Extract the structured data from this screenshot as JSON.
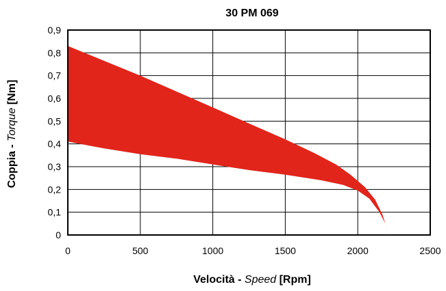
{
  "chart_data": {
    "type": "area",
    "title": "30 PM 069",
    "xlabel": {
      "main": "Velocità - ",
      "italic": "Speed",
      "unit": " [Rpm]"
    },
    "ylabel": {
      "main": "Coppia - ",
      "italic": "Torque",
      "unit": " [Nm]"
    },
    "xlim": [
      0,
      2500
    ],
    "ylim": [
      0,
      0.9
    ],
    "x_ticks": [
      0,
      500,
      1000,
      1500,
      2000,
      2500
    ],
    "x_tick_labels": [
      "0",
      "500",
      "1000",
      "1500",
      "2000",
      "2500"
    ],
    "y_ticks": [
      0,
      0.1,
      0.2,
      0.3,
      0.4,
      0.5,
      0.6,
      0.7,
      0.8,
      0.9
    ],
    "y_tick_labels": [
      "0",
      "0,1",
      "0,2",
      "0,3",
      "0,4",
      "0,5",
      "0,6",
      "0,7",
      "0,8",
      "0,9"
    ],
    "grid": true,
    "fill_color": "#e1251b",
    "series": [
      {
        "role": "upper",
        "points": [
          [
            0,
            0.83
          ],
          [
            250,
            0.765
          ],
          [
            500,
            0.7
          ],
          [
            750,
            0.63
          ],
          [
            1000,
            0.56
          ],
          [
            1250,
            0.49
          ],
          [
            1500,
            0.42
          ],
          [
            1700,
            0.36
          ],
          [
            1850,
            0.31
          ],
          [
            1950,
            0.265
          ],
          [
            2050,
            0.21
          ],
          [
            2120,
            0.155
          ],
          [
            2170,
            0.09
          ],
          [
            2200,
            0.03
          ],
          [
            2215,
            0.0
          ]
        ]
      },
      {
        "role": "lower",
        "points": [
          [
            0,
            0.41
          ],
          [
            250,
            0.38
          ],
          [
            500,
            0.355
          ],
          [
            750,
            0.335
          ],
          [
            1000,
            0.31
          ],
          [
            1250,
            0.285
          ],
          [
            1500,
            0.265
          ],
          [
            1750,
            0.24
          ],
          [
            1900,
            0.22
          ],
          [
            2000,
            0.195
          ],
          [
            2080,
            0.16
          ],
          [
            2150,
            0.1
          ],
          [
            2190,
            0.05
          ],
          [
            2215,
            0.0
          ]
        ]
      }
    ]
  }
}
